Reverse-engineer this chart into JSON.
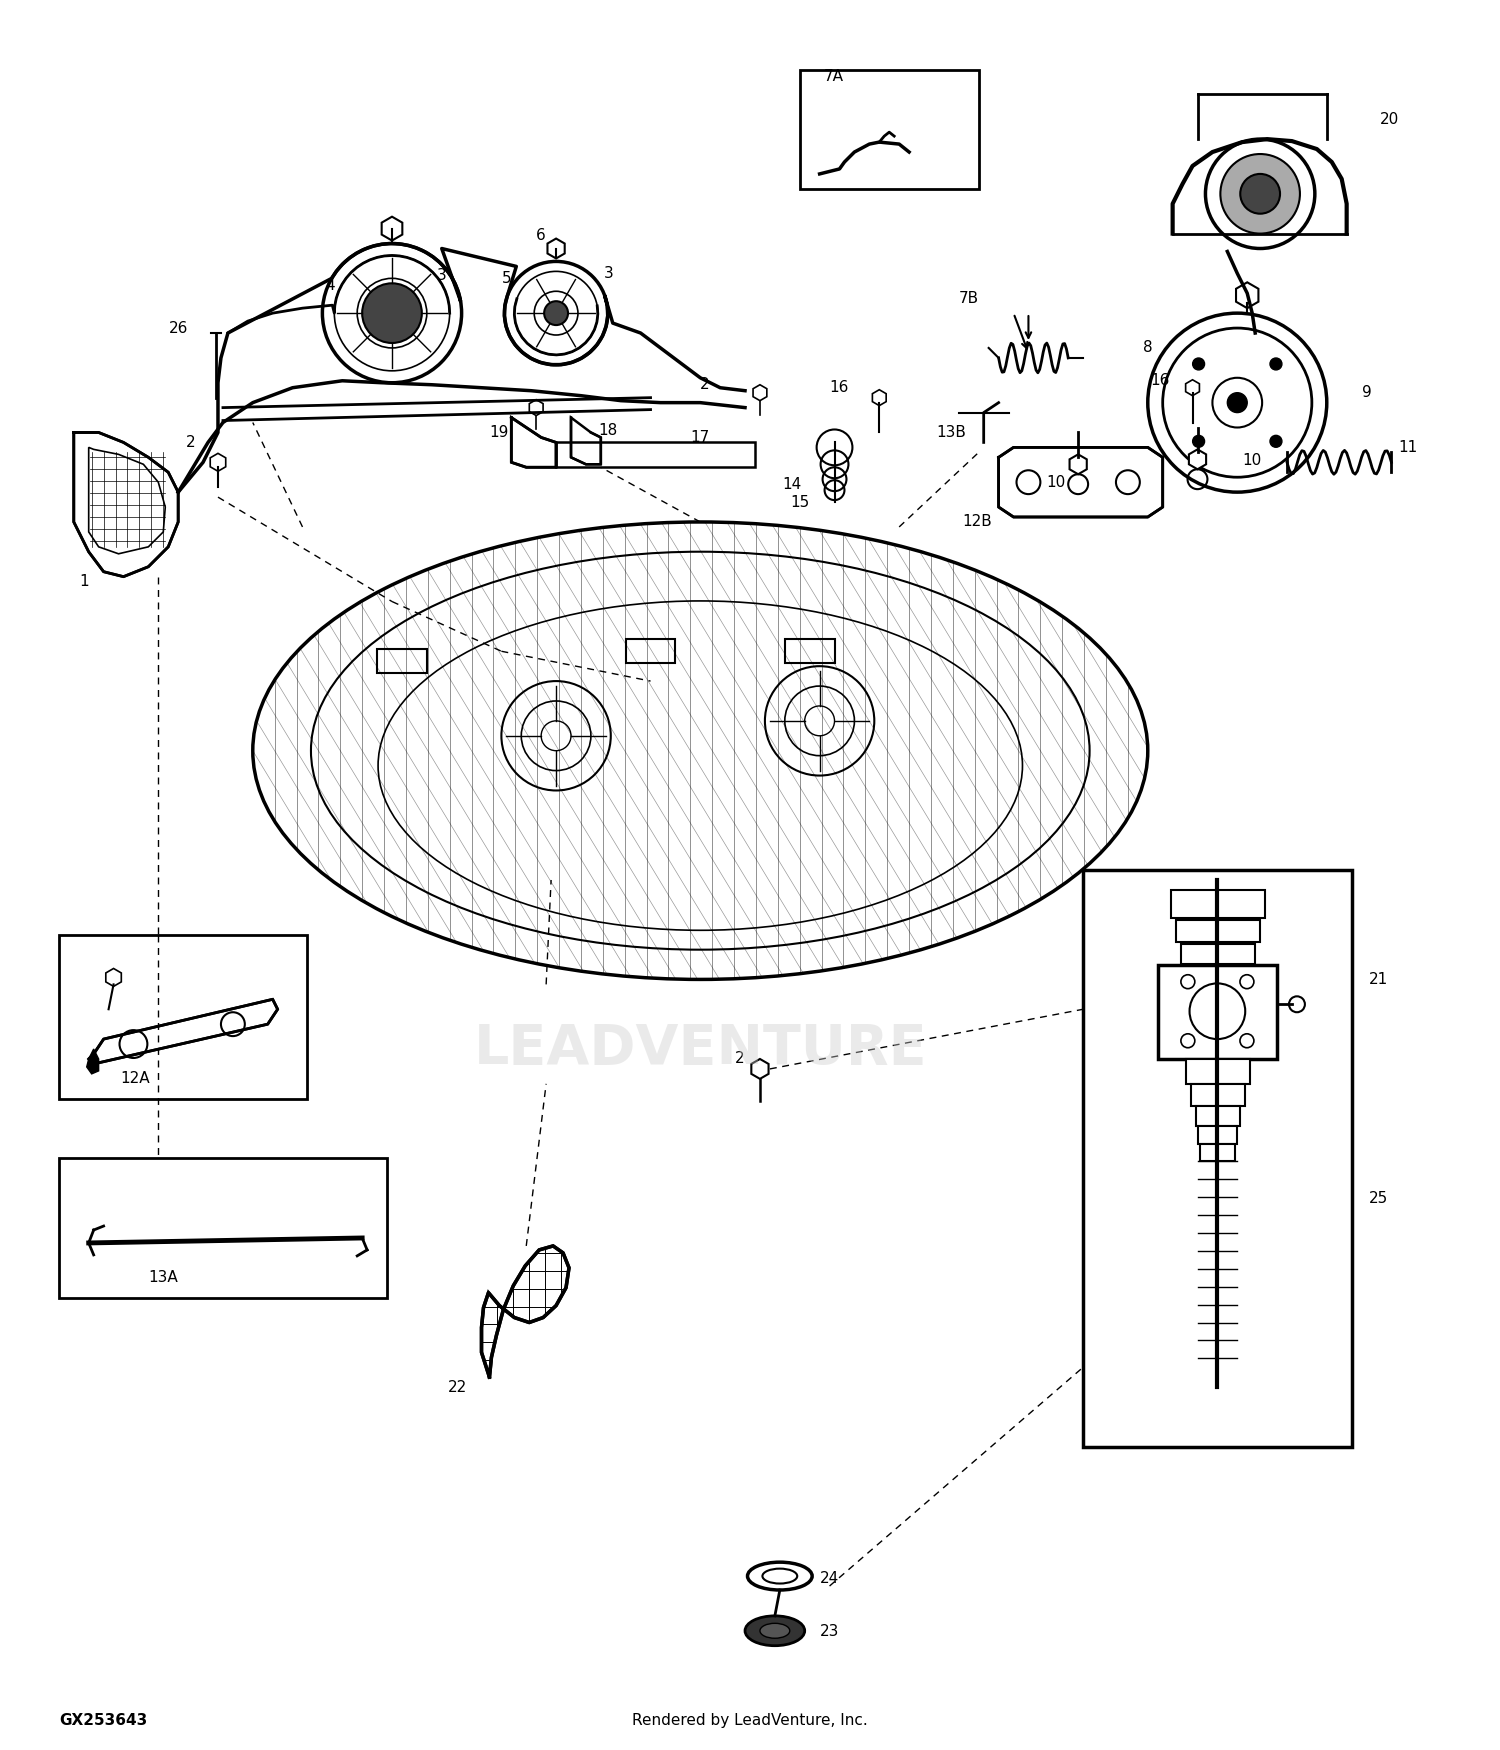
{
  "background_color": "#ffffff",
  "watermark": "LEADVENTURE",
  "footer_left": "GX253643",
  "footer_right": "Rendered by LeadVenture, Inc.",
  "fig_width": 15.0,
  "fig_height": 17.5,
  "dpi": 100
}
